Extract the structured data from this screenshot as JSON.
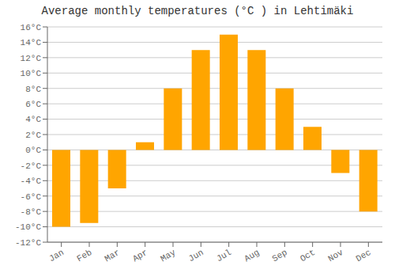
{
  "chart_data": {
    "type": "bar",
    "title": "Average monthly temperatures (°C ) in Lehtimäki",
    "categories": [
      "Jan",
      "Feb",
      "Mar",
      "Apr",
      "May",
      "Jun",
      "Jul",
      "Aug",
      "Sep",
      "Oct",
      "Nov",
      "Dec"
    ],
    "values": [
      -10.0,
      -9.5,
      -5.0,
      1.0,
      8.0,
      13.0,
      15.0,
      13.0,
      8.0,
      3.0,
      -3.0,
      -8.0
    ],
    "color": "#FFA500",
    "ylim": [
      -12,
      16
    ],
    "yticks": [
      {
        "value": -12,
        "label": "-12°C"
      },
      {
        "value": -10,
        "label": "-10°C"
      },
      {
        "value": -8,
        "label": "-8°C"
      },
      {
        "value": -6,
        "label": "-6°C"
      },
      {
        "value": -4,
        "label": "-4°C"
      },
      {
        "value": -2,
        "label": "-2°C"
      },
      {
        "value": 0,
        "label": "0°C"
      },
      {
        "value": 2,
        "label": "2°C"
      },
      {
        "value": 4,
        "label": "4°C"
      },
      {
        "value": 6,
        "label": "6°C"
      },
      {
        "value": 8,
        "label": "8°C"
      },
      {
        "value": 10,
        "label": "10°C"
      },
      {
        "value": 12,
        "label": "12°C"
      },
      {
        "value": 14,
        "label": "14°C"
      },
      {
        "value": 16,
        "label": "16°C"
      }
    ],
    "grid": true
  }
}
